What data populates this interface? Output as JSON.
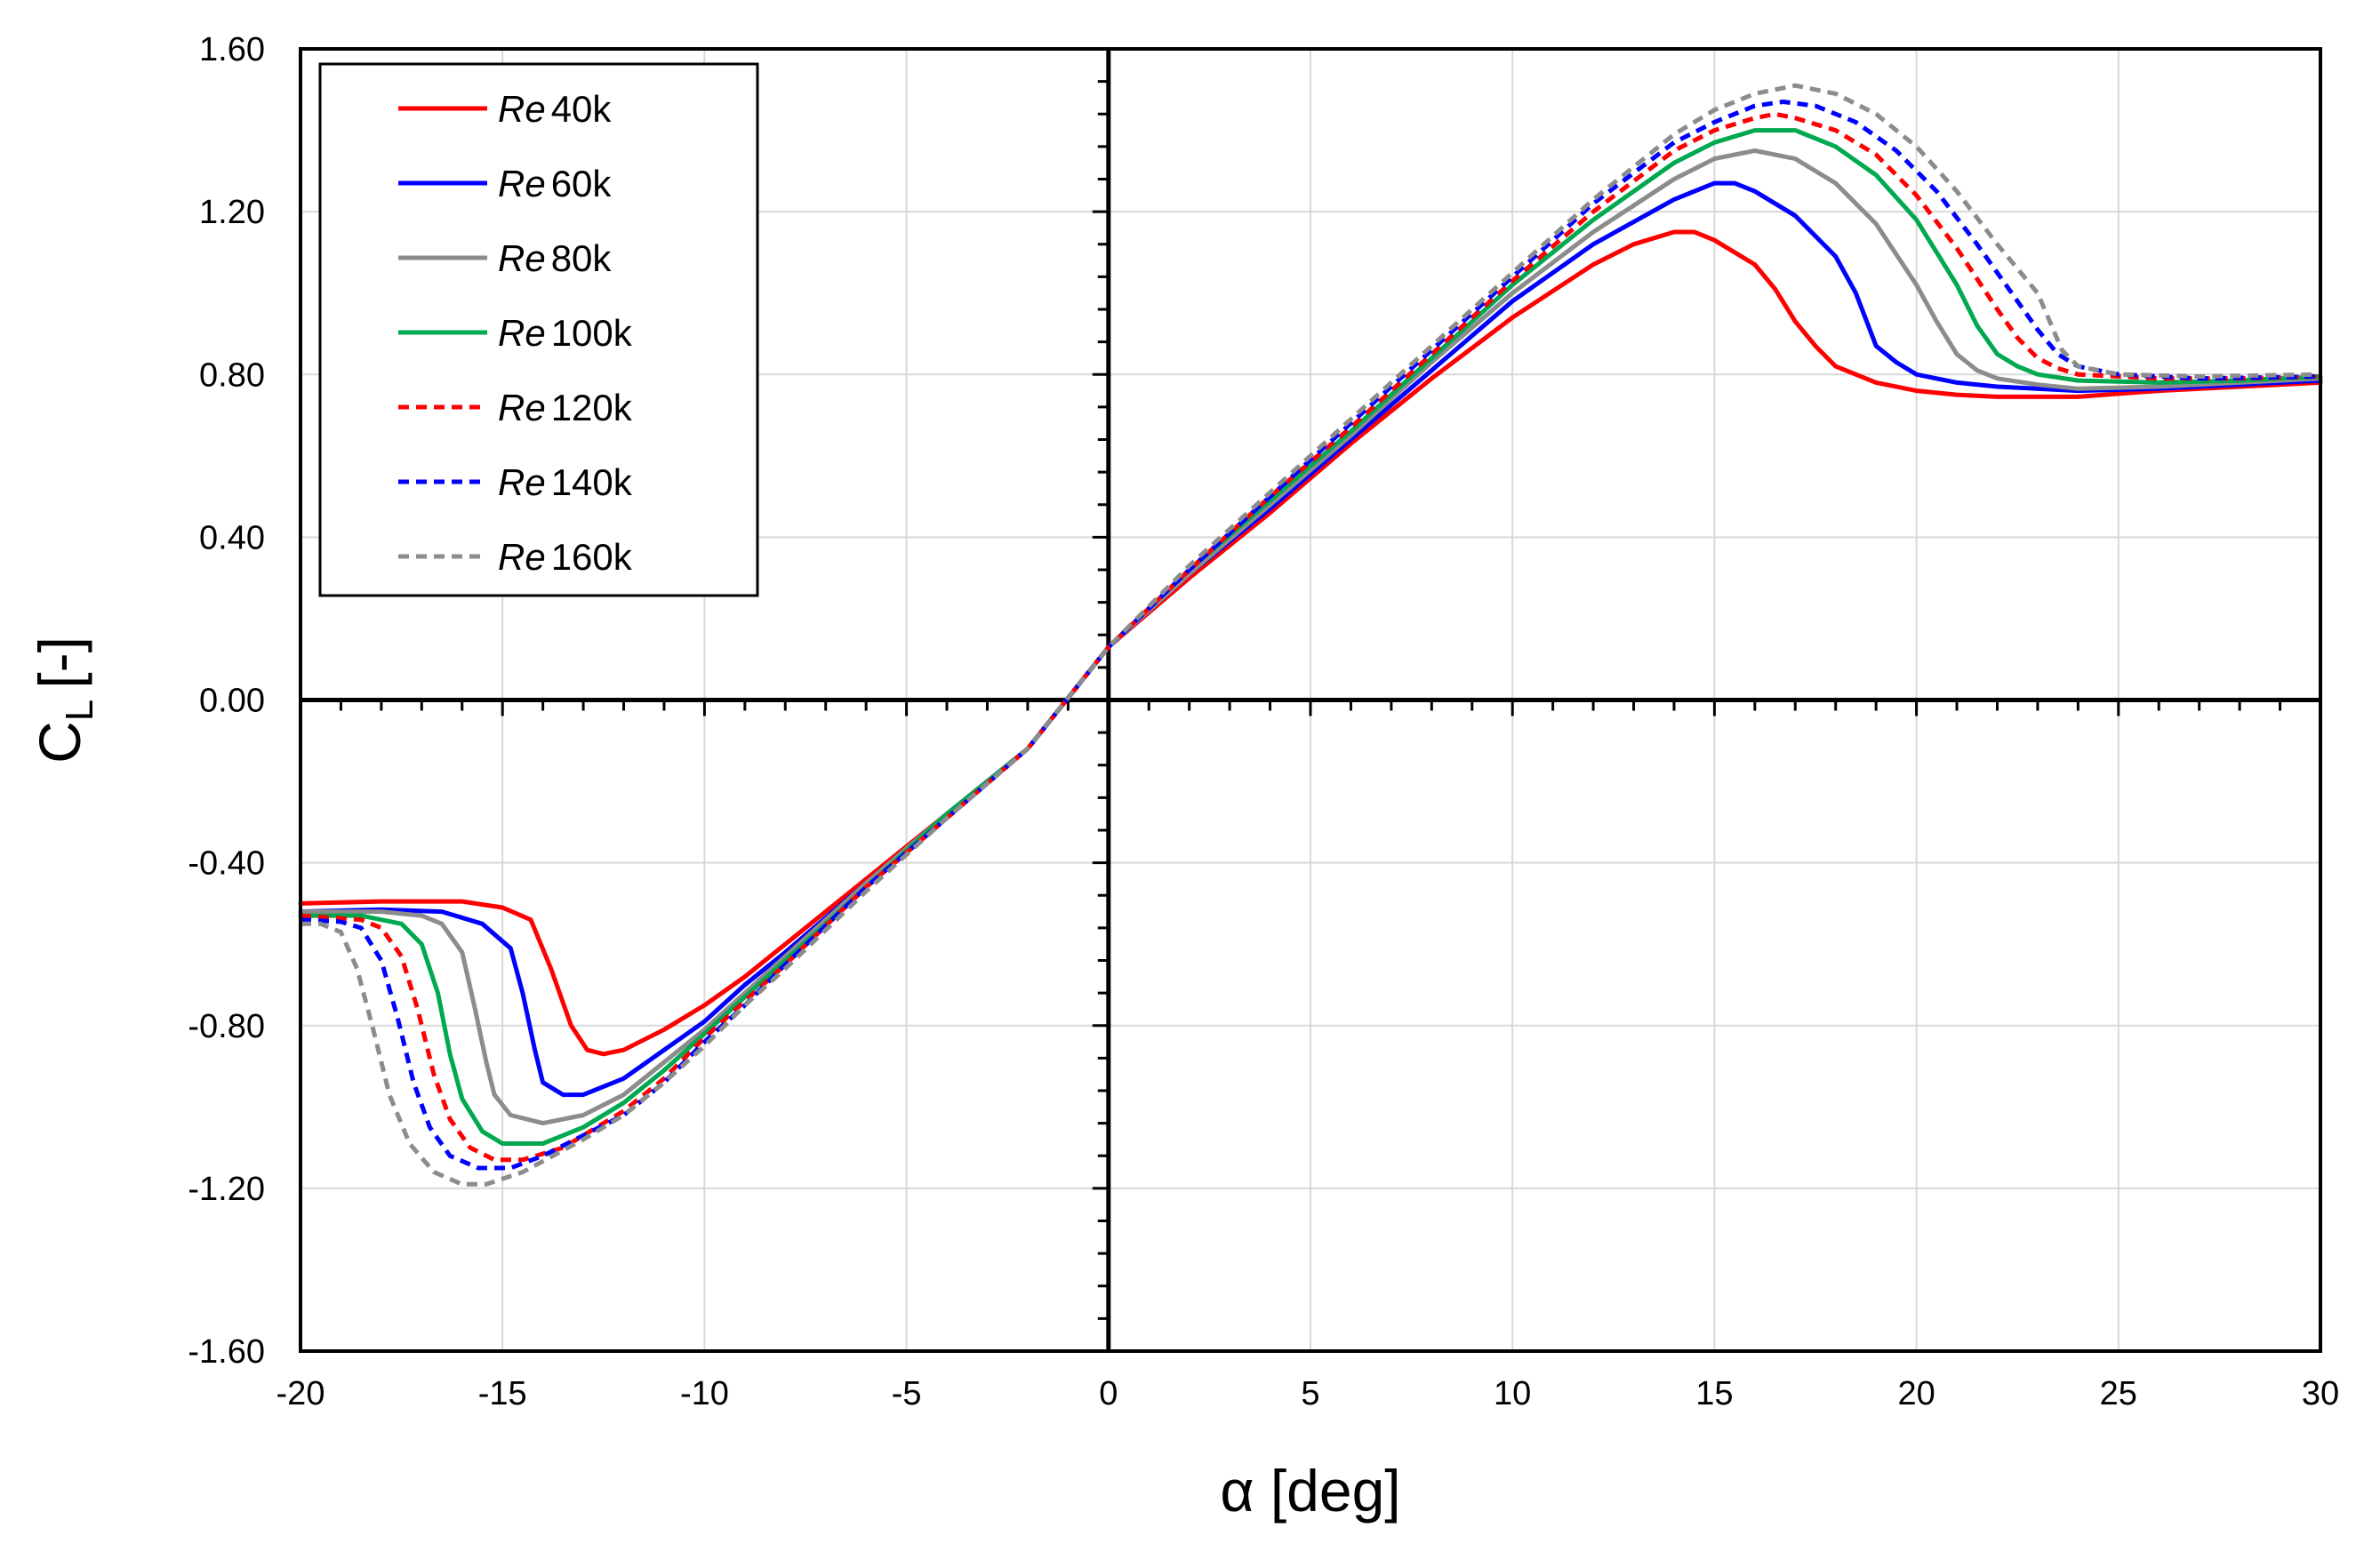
{
  "chart_data": {
    "type": "line",
    "title": "",
    "xlabel": "α [deg]",
    "ylabel_main": "C",
    "ylabel_sub": "L",
    "ylabel_unit": "[-]",
    "xlim": [
      -20,
      30
    ],
    "ylim": [
      -1.6,
      1.6
    ],
    "xticks": [
      -20,
      -15,
      -10,
      -5,
      0,
      5,
      10,
      15,
      20,
      25,
      30
    ],
    "xtick_labels": [
      "-20",
      "-15",
      "-10",
      "-5",
      "0",
      "5",
      "10",
      "15",
      "20",
      "25",
      "30"
    ],
    "yticks": [
      -1.6,
      -1.2,
      -0.8,
      -0.4,
      0,
      0.4,
      0.8,
      1.2,
      1.6
    ],
    "ytick_labels": [
      "-1.60",
      "-1.20",
      "-0.80",
      "-0.40",
      "0.00",
      "0.40",
      "0.80",
      "1.20",
      "1.60"
    ],
    "grid": true,
    "legend_position": "top-left",
    "series": [
      {
        "name": "Re 40k",
        "legend_italic": "Re",
        "legend_rest": "40k",
        "color": "#ff0000",
        "dash": "solid",
        "points": [
          [
            -20,
            -0.5
          ],
          [
            -18,
            -0.495
          ],
          [
            -16,
            -0.495
          ],
          [
            -15,
            -0.51
          ],
          [
            -14.3,
            -0.54
          ],
          [
            -13.8,
            -0.66
          ],
          [
            -13.3,
            -0.8
          ],
          [
            -12.9,
            -0.86
          ],
          [
            -12.5,
            -0.87
          ],
          [
            -12,
            -0.86
          ],
          [
            -11,
            -0.81
          ],
          [
            -10,
            -0.75
          ],
          [
            -9,
            -0.68
          ],
          [
            -8,
            -0.6
          ],
          [
            -6,
            -0.44
          ],
          [
            -4,
            -0.28
          ],
          [
            -2,
            -0.12
          ],
          [
            0,
            0.13
          ],
          [
            2,
            0.3
          ],
          [
            4,
            0.46
          ],
          [
            6,
            0.63
          ],
          [
            8,
            0.79
          ],
          [
            10,
            0.94
          ],
          [
            12,
            1.07
          ],
          [
            13,
            1.12
          ],
          [
            14,
            1.15
          ],
          [
            14.5,
            1.15
          ],
          [
            15,
            1.13
          ],
          [
            16,
            1.07
          ],
          [
            16.5,
            1.01
          ],
          [
            17,
            0.93
          ],
          [
            17.5,
            0.87
          ],
          [
            18,
            0.82
          ],
          [
            19,
            0.78
          ],
          [
            20,
            0.76
          ],
          [
            21,
            0.75
          ],
          [
            22,
            0.745
          ],
          [
            24,
            0.745
          ],
          [
            26,
            0.76
          ],
          [
            28,
            0.77
          ],
          [
            30,
            0.78
          ]
        ]
      },
      {
        "name": "Re 60k",
        "legend_italic": "Re",
        "legend_rest": "60k",
        "color": "#0000ff",
        "dash": "solid",
        "points": [
          [
            -20,
            -0.52
          ],
          [
            -18,
            -0.515
          ],
          [
            -16.5,
            -0.52
          ],
          [
            -15.5,
            -0.55
          ],
          [
            -14.8,
            -0.61
          ],
          [
            -14.5,
            -0.72
          ],
          [
            -14.2,
            -0.86
          ],
          [
            -14,
            -0.94
          ],
          [
            -13.5,
            -0.97
          ],
          [
            -13,
            -0.97
          ],
          [
            -12,
            -0.93
          ],
          [
            -11,
            -0.86
          ],
          [
            -10,
            -0.79
          ],
          [
            -9,
            -0.7
          ],
          [
            -8,
            -0.62
          ],
          [
            -6,
            -0.45
          ],
          [
            -4,
            -0.28
          ],
          [
            -2,
            -0.12
          ],
          [
            0,
            0.13
          ],
          [
            2,
            0.31
          ],
          [
            4,
            0.47
          ],
          [
            6,
            0.64
          ],
          [
            8,
            0.81
          ],
          [
            10,
            0.98
          ],
          [
            12,
            1.12
          ],
          [
            14,
            1.23
          ],
          [
            15,
            1.27
          ],
          [
            15.5,
            1.27
          ],
          [
            16,
            1.25
          ],
          [
            17,
            1.19
          ],
          [
            18,
            1.09
          ],
          [
            18.5,
            1.0
          ],
          [
            19,
            0.87
          ],
          [
            19.5,
            0.83
          ],
          [
            20,
            0.8
          ],
          [
            21,
            0.78
          ],
          [
            22,
            0.77
          ],
          [
            24,
            0.76
          ],
          [
            26,
            0.765
          ],
          [
            28,
            0.775
          ],
          [
            30,
            0.785
          ]
        ]
      },
      {
        "name": "Re 80k",
        "legend_italic": "Re",
        "legend_rest": "80k",
        "color": "#8c8c8c",
        "dash": "solid",
        "points": [
          [
            -20,
            -0.52
          ],
          [
            -18,
            -0.52
          ],
          [
            -17,
            -0.53
          ],
          [
            -16.5,
            -0.55
          ],
          [
            -16,
            -0.62
          ],
          [
            -15.7,
            -0.75
          ],
          [
            -15.4,
            -0.89
          ],
          [
            -15.2,
            -0.97
          ],
          [
            -14.8,
            -1.02
          ],
          [
            -14,
            -1.04
          ],
          [
            -13,
            -1.02
          ],
          [
            -12,
            -0.97
          ],
          [
            -11,
            -0.89
          ],
          [
            -10,
            -0.81
          ],
          [
            -9,
            -0.72
          ],
          [
            -8,
            -0.63
          ],
          [
            -6,
            -0.45
          ],
          [
            -4,
            -0.28
          ],
          [
            -2,
            -0.12
          ],
          [
            0,
            0.13
          ],
          [
            2,
            0.31
          ],
          [
            4,
            0.48
          ],
          [
            6,
            0.65
          ],
          [
            8,
            0.83
          ],
          [
            10,
            1.0
          ],
          [
            12,
            1.15
          ],
          [
            14,
            1.28
          ],
          [
            15,
            1.33
          ],
          [
            16,
            1.35
          ],
          [
            17,
            1.33
          ],
          [
            18,
            1.27
          ],
          [
            19,
            1.17
          ],
          [
            20,
            1.02
          ],
          [
            20.5,
            0.93
          ],
          [
            21,
            0.85
          ],
          [
            21.5,
            0.81
          ],
          [
            22,
            0.79
          ],
          [
            23,
            0.775
          ],
          [
            24,
            0.765
          ],
          [
            26,
            0.77
          ],
          [
            28,
            0.78
          ],
          [
            30,
            0.79
          ]
        ]
      },
      {
        "name": "Re 100k",
        "legend_italic": "Re",
        "legend_rest": "100k",
        "color": "#00a84f",
        "dash": "solid",
        "points": [
          [
            -20,
            -0.53
          ],
          [
            -18.5,
            -0.53
          ],
          [
            -17.5,
            -0.55
          ],
          [
            -17,
            -0.6
          ],
          [
            -16.6,
            -0.72
          ],
          [
            -16.3,
            -0.87
          ],
          [
            -16,
            -0.98
          ],
          [
            -15.5,
            -1.06
          ],
          [
            -15,
            -1.09
          ],
          [
            -14,
            -1.09
          ],
          [
            -13,
            -1.05
          ],
          [
            -12,
            -0.99
          ],
          [
            -11,
            -0.91
          ],
          [
            -10,
            -0.82
          ],
          [
            -9,
            -0.73
          ],
          [
            -8,
            -0.64
          ],
          [
            -6,
            -0.46
          ],
          [
            -4,
            -0.28
          ],
          [
            -2,
            -0.12
          ],
          [
            0,
            0.13
          ],
          [
            2,
            0.32
          ],
          [
            4,
            0.49
          ],
          [
            6,
            0.66
          ],
          [
            8,
            0.84
          ],
          [
            10,
            1.02
          ],
          [
            12,
            1.18
          ],
          [
            14,
            1.32
          ],
          [
            15,
            1.37
          ],
          [
            16,
            1.4
          ],
          [
            17,
            1.4
          ],
          [
            18,
            1.36
          ],
          [
            19,
            1.29
          ],
          [
            20,
            1.18
          ],
          [
            21,
            1.02
          ],
          [
            21.5,
            0.92
          ],
          [
            22,
            0.85
          ],
          [
            22.5,
            0.82
          ],
          [
            23,
            0.8
          ],
          [
            24,
            0.785
          ],
          [
            26,
            0.78
          ],
          [
            28,
            0.785
          ],
          [
            30,
            0.795
          ]
        ]
      },
      {
        "name": "Re 120k",
        "legend_italic": "Re",
        "legend_rest": "120k",
        "color": "#ff0000",
        "dash": "dashed",
        "points": [
          [
            -20,
            -0.53
          ],
          [
            -18.5,
            -0.54
          ],
          [
            -18,
            -0.56
          ],
          [
            -17.5,
            -0.63
          ],
          [
            -17.1,
            -0.76
          ],
          [
            -16.7,
            -0.92
          ],
          [
            -16.3,
            -1.03
          ],
          [
            -15.8,
            -1.1
          ],
          [
            -15.2,
            -1.13
          ],
          [
            -14.5,
            -1.13
          ],
          [
            -13.5,
            -1.1
          ],
          [
            -12,
            -1.01
          ],
          [
            -11,
            -0.93
          ],
          [
            -10,
            -0.83
          ],
          [
            -9,
            -0.74
          ],
          [
            -8,
            -0.65
          ],
          [
            -6,
            -0.46
          ],
          [
            -4,
            -0.29
          ],
          [
            -2,
            -0.12
          ],
          [
            0,
            0.13
          ],
          [
            2,
            0.32
          ],
          [
            4,
            0.5
          ],
          [
            6,
            0.67
          ],
          [
            8,
            0.85
          ],
          [
            10,
            1.03
          ],
          [
            12,
            1.2
          ],
          [
            14,
            1.35
          ],
          [
            15,
            1.4
          ],
          [
            16,
            1.43
          ],
          [
            16.5,
            1.44
          ],
          [
            17,
            1.43
          ],
          [
            18,
            1.4
          ],
          [
            19,
            1.34
          ],
          [
            20,
            1.24
          ],
          [
            21,
            1.11
          ],
          [
            22,
            0.96
          ],
          [
            22.5,
            0.89
          ],
          [
            23,
            0.84
          ],
          [
            23.5,
            0.815
          ],
          [
            24,
            0.8
          ],
          [
            26,
            0.79
          ],
          [
            28,
            0.79
          ],
          [
            30,
            0.795
          ]
        ]
      },
      {
        "name": "Re 140k",
        "legend_italic": "Re",
        "legend_rest": "140k",
        "color": "#0000ff",
        "dash": "dashed",
        "points": [
          [
            -20,
            -0.54
          ],
          [
            -19,
            -0.545
          ],
          [
            -18.5,
            -0.56
          ],
          [
            -18,
            -0.64
          ],
          [
            -17.6,
            -0.78
          ],
          [
            -17.2,
            -0.94
          ],
          [
            -16.8,
            -1.05
          ],
          [
            -16.3,
            -1.12
          ],
          [
            -15.6,
            -1.15
          ],
          [
            -14.8,
            -1.15
          ],
          [
            -14,
            -1.12
          ],
          [
            -12,
            -1.02
          ],
          [
            -11,
            -0.94
          ],
          [
            -10,
            -0.84
          ],
          [
            -9,
            -0.75
          ],
          [
            -8,
            -0.65
          ],
          [
            -6,
            -0.46
          ],
          [
            -4,
            -0.29
          ],
          [
            -2,
            -0.12
          ],
          [
            0,
            0.13
          ],
          [
            2,
            0.32
          ],
          [
            4,
            0.5
          ],
          [
            6,
            0.68
          ],
          [
            8,
            0.86
          ],
          [
            10,
            1.04
          ],
          [
            12,
            1.22
          ],
          [
            14,
            1.37
          ],
          [
            15,
            1.42
          ],
          [
            16,
            1.46
          ],
          [
            16.7,
            1.47
          ],
          [
            17.5,
            1.46
          ],
          [
            18.5,
            1.42
          ],
          [
            19.5,
            1.35
          ],
          [
            20.5,
            1.25
          ],
          [
            21.5,
            1.12
          ],
          [
            22.5,
            0.98
          ],
          [
            23,
            0.91
          ],
          [
            23.5,
            0.85
          ],
          [
            24,
            0.82
          ],
          [
            25,
            0.8
          ],
          [
            27,
            0.79
          ],
          [
            30,
            0.795
          ]
        ]
      },
      {
        "name": "Re 160k",
        "legend_italic": "Re",
        "legend_rest": "160k",
        "color": "#8c8c8c",
        "dash": "dashed",
        "points": [
          [
            -20,
            -0.55
          ],
          [
            -19.5,
            -0.55
          ],
          [
            -19,
            -0.57
          ],
          [
            -18.6,
            -0.66
          ],
          [
            -18.2,
            -0.81
          ],
          [
            -17.8,
            -0.97
          ],
          [
            -17.3,
            -1.09
          ],
          [
            -16.7,
            -1.16
          ],
          [
            -16,
            -1.19
          ],
          [
            -15.4,
            -1.19
          ],
          [
            -14.5,
            -1.16
          ],
          [
            -13,
            -1.08
          ],
          [
            -12,
            -1.02
          ],
          [
            -11,
            -0.94
          ],
          [
            -10,
            -0.85
          ],
          [
            -9,
            -0.75
          ],
          [
            -8,
            -0.66
          ],
          [
            -6,
            -0.47
          ],
          [
            -4,
            -0.29
          ],
          [
            -2,
            -0.12
          ],
          [
            0,
            0.13
          ],
          [
            2,
            0.33
          ],
          [
            4,
            0.51
          ],
          [
            6,
            0.69
          ],
          [
            8,
            0.87
          ],
          [
            10,
            1.05
          ],
          [
            12,
            1.23
          ],
          [
            14,
            1.39
          ],
          [
            15,
            1.45
          ],
          [
            16,
            1.49
          ],
          [
            17,
            1.51
          ],
          [
            18,
            1.49
          ],
          [
            19,
            1.44
          ],
          [
            20,
            1.36
          ],
          [
            21,
            1.25
          ],
          [
            22,
            1.12
          ],
          [
            23,
            1.0
          ],
          [
            23.3,
            0.93
          ],
          [
            23.6,
            0.86
          ],
          [
            24,
            0.82
          ],
          [
            25,
            0.8
          ],
          [
            27,
            0.795
          ],
          [
            30,
            0.8
          ]
        ]
      }
    ]
  }
}
